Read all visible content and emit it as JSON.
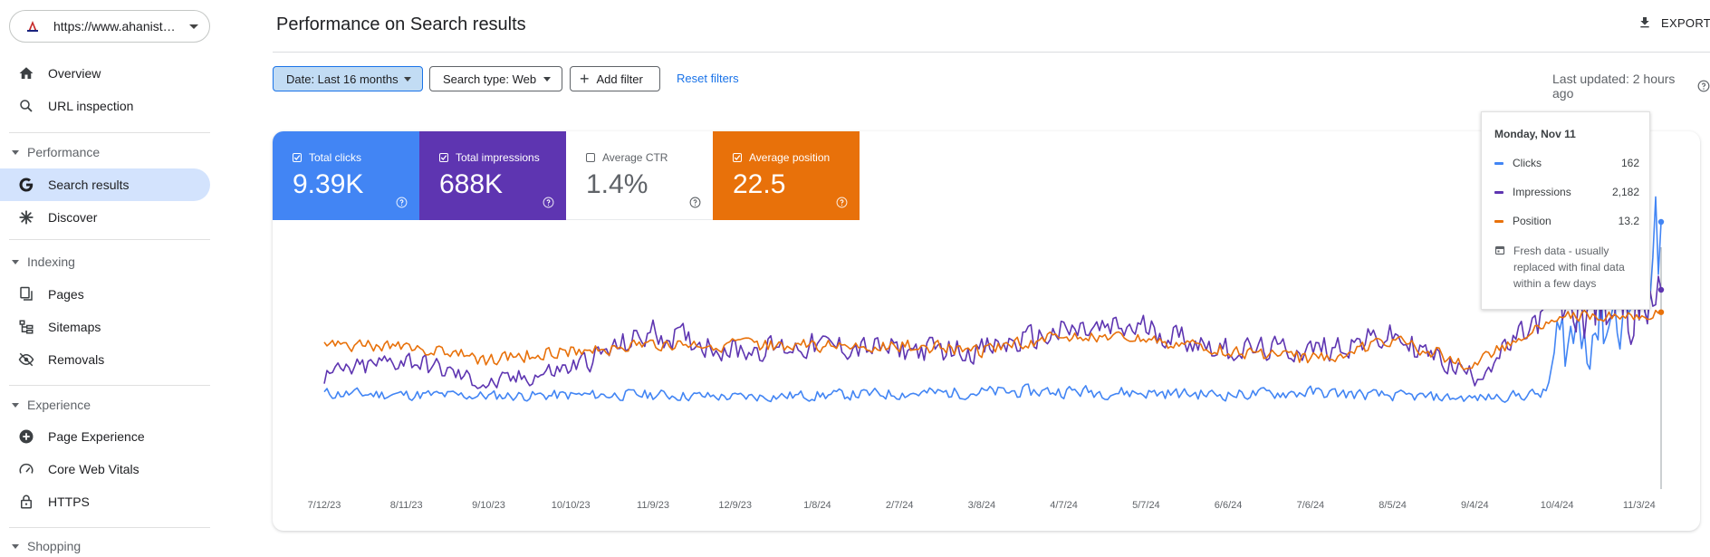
{
  "property": {
    "url": "https://www.ahanista.com/"
  },
  "nav": {
    "overview": "Overview",
    "url_inspection": "URL inspection",
    "performance_section": "Performance",
    "search_results": "Search results",
    "discover": "Discover",
    "indexing_section": "Indexing",
    "pages": "Pages",
    "sitemaps": "Sitemaps",
    "removals": "Removals",
    "experience_section": "Experience",
    "page_experience": "Page Experience",
    "core_web_vitals": "Core Web Vitals",
    "https": "HTTPS",
    "shopping_section": "Shopping"
  },
  "header": {
    "title": "Performance on Search results",
    "export_label": "EXPORT"
  },
  "filters": {
    "date": "Date: Last 16 months",
    "search_type": "Search type: Web",
    "add_filter": "Add filter",
    "reset": "Reset filters",
    "last_updated": "Last updated: 2 hours ago"
  },
  "metrics": {
    "clicks": {
      "label": "Total clicks",
      "value": "9.39K",
      "checked": true,
      "color": "#4285f4"
    },
    "impressions": {
      "label": "Total impressions",
      "value": "688K",
      "checked": true,
      "color": "#5e35b1"
    },
    "ctr": {
      "label": "Average CTR",
      "value": "1.4%",
      "checked": false
    },
    "position": {
      "label": "Average position",
      "value": "22.5",
      "checked": true,
      "color": "#e8710a"
    }
  },
  "tooltip": {
    "date": "Monday, Nov 11",
    "rows": [
      {
        "label": "Clicks",
        "value": "162",
        "color": "#4285f4"
      },
      {
        "label": "Impressions",
        "value": "2,182",
        "color": "#5e35b1"
      },
      {
        "label": "Position",
        "value": "13.2",
        "color": "#e8710a"
      }
    ],
    "note": "Fresh data - usually replaced with final data within a few days"
  },
  "chart_data": {
    "type": "line",
    "x_tick_labels": [
      "7/12/23",
      "8/11/23",
      "9/10/23",
      "10/10/23",
      "11/9/23",
      "12/9/23",
      "1/8/24",
      "2/7/24",
      "3/8/24",
      "4/7/24",
      "5/7/24",
      "6/6/24",
      "7/6/24",
      "8/5/24",
      "9/4/24",
      "10/4/24",
      "11/3/24"
    ],
    "x_range": [
      "7/12/23",
      "11/11/24"
    ],
    "series": [
      {
        "name": "Clicks",
        "color": "#4285f4",
        "anchors": [
          [
            "7/12/23",
            18
          ],
          [
            "9/10/23",
            16
          ],
          [
            "11/9/23",
            17
          ],
          [
            "12/9/23",
            15
          ],
          [
            "2/7/24",
            18
          ],
          [
            "4/7/24",
            20
          ],
          [
            "6/6/24",
            17
          ],
          [
            "7/6/24",
            19
          ],
          [
            "8/5/24",
            16
          ],
          [
            "9/4/24",
            14
          ],
          [
            "9/30/24",
            18
          ],
          [
            "10/4/24",
            60
          ],
          [
            "10/20/24",
            80
          ],
          [
            "11/3/24",
            100
          ],
          [
            "11/11/24",
            162
          ]
        ]
      },
      {
        "name": "Impressions",
        "color": "#5e35b1",
        "anchors": [
          [
            "7/12/23",
            1200
          ],
          [
            "8/11/23",
            1400
          ],
          [
            "9/10/23",
            1100
          ],
          [
            "10/10/23",
            1300
          ],
          [
            "11/9/23",
            1700
          ],
          [
            "12/9/23",
            1500
          ],
          [
            "1/8/24",
            1550
          ],
          [
            "2/7/24",
            1500
          ],
          [
            "3/8/24",
            1500
          ],
          [
            "4/7/24",
            1700
          ],
          [
            "5/7/24",
            1750
          ],
          [
            "6/6/24",
            1500
          ],
          [
            "7/6/24",
            1500
          ],
          [
            "8/5/24",
            1650
          ],
          [
            "9/4/24",
            1200
          ],
          [
            "10/4/24",
            2000
          ],
          [
            "11/3/24",
            2000
          ],
          [
            "11/11/24",
            2182
          ]
        ]
      },
      {
        "name": "Position",
        "color": "#e8710a",
        "anchors": [
          [
            "7/12/23",
            20
          ],
          [
            "8/11/23",
            20
          ],
          [
            "9/10/23",
            23
          ],
          [
            "10/10/23",
            21
          ],
          [
            "11/9/23",
            20
          ],
          [
            "12/9/23",
            20
          ],
          [
            "1/8/24",
            20
          ],
          [
            "2/7/24",
            20
          ],
          [
            "3/8/24",
            21
          ],
          [
            "4/7/24",
            18
          ],
          [
            "5/7/24",
            19
          ],
          [
            "6/6/24",
            21
          ],
          [
            "7/6/24",
            23
          ],
          [
            "8/5/24",
            19
          ],
          [
            "9/4/24",
            24
          ],
          [
            "10/4/24",
            14
          ],
          [
            "11/3/24",
            14
          ],
          [
            "11/11/24",
            13.2
          ]
        ]
      }
    ],
    "legend": "metric tiles (top-left)",
    "grid": false
  }
}
